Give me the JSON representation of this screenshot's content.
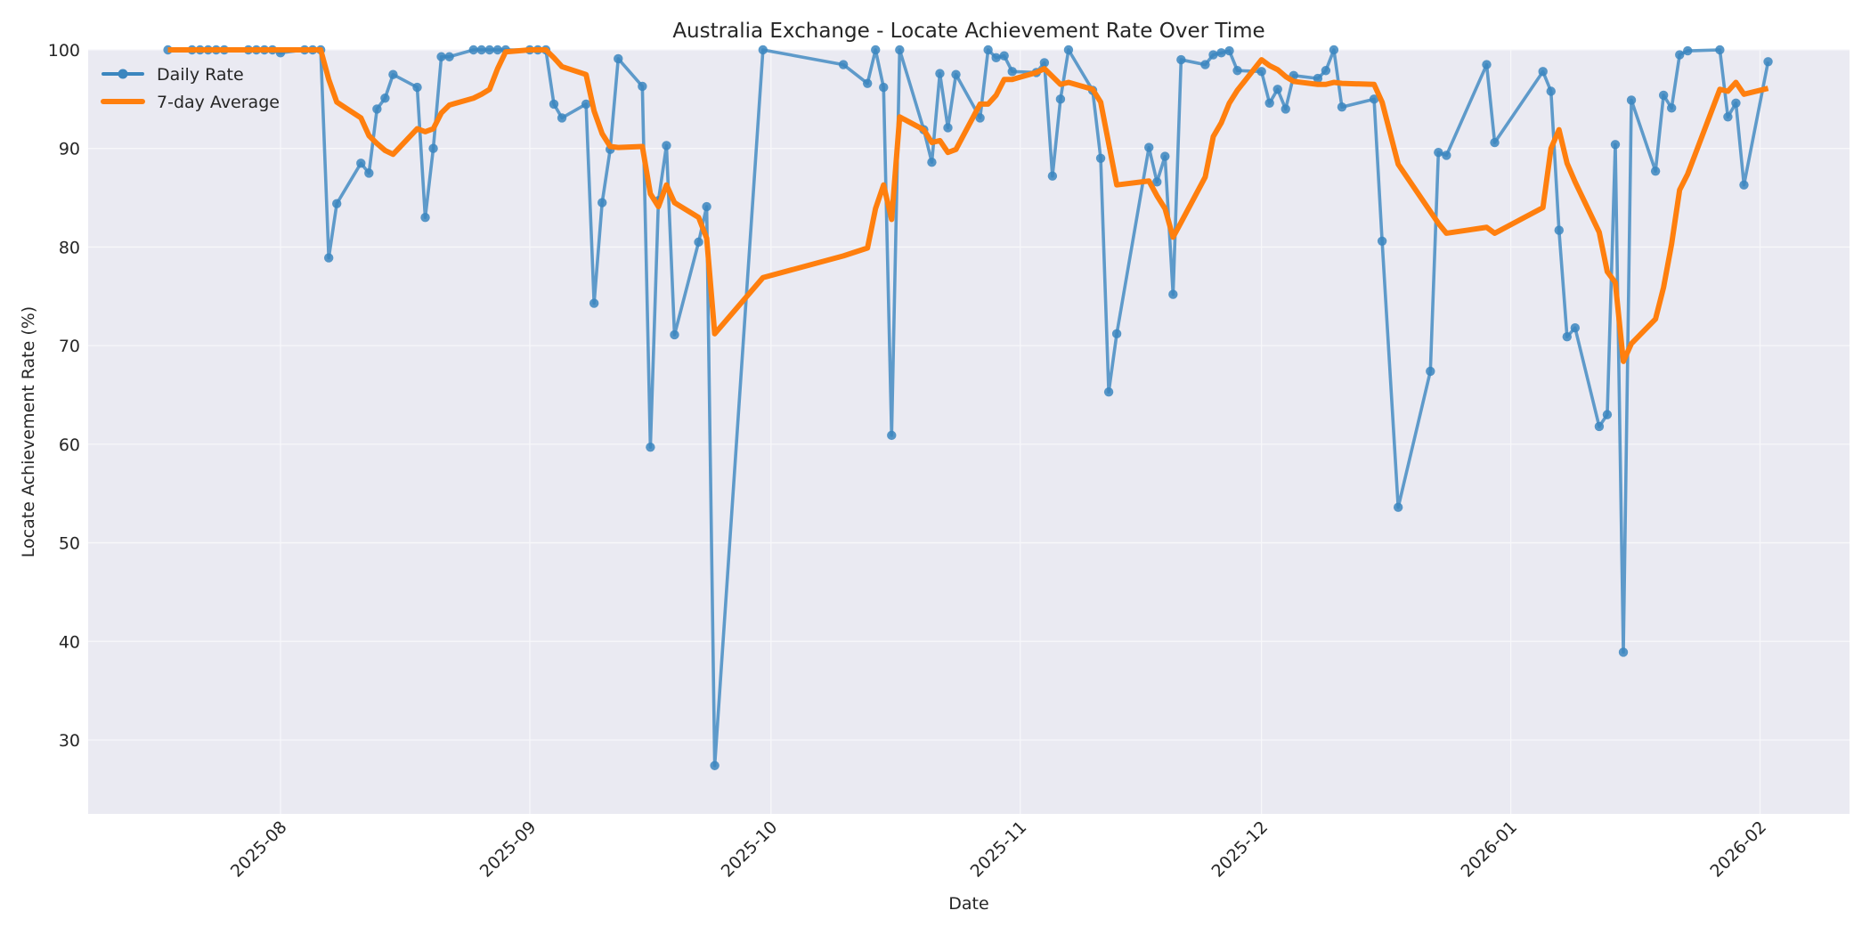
{
  "chart_data": {
    "type": "line",
    "title": "Australia Exchange - Locate Achievement Rate Over Time",
    "xlabel": "Date",
    "ylabel": "Locate Achievement Rate (%)",
    "ylim": [
      22.5,
      100
    ],
    "yticks": [
      30,
      40,
      50,
      60,
      70,
      80,
      90,
      100
    ],
    "xlim": [
      "2025-07-11",
      "2026-02-10"
    ],
    "xticks": [
      "2025-08",
      "2025-09",
      "2025-10",
      "2025-11",
      "2025-12",
      "2026-01",
      "2026-02"
    ],
    "grid": true,
    "legend_position": "upper left",
    "colors": {
      "daily": "#3b86bf",
      "average": "#ff7f0e",
      "plot_bg": "#eaeaf2",
      "grid": "#f7f7fa"
    },
    "series": [
      {
        "name": "Daily Rate",
        "style": "line-with-markers",
        "points": [
          [
            "2025-07-18",
            100
          ],
          [
            "2025-07-21",
            100
          ],
          [
            "2025-07-22",
            100
          ],
          [
            "2025-07-23",
            100
          ],
          [
            "2025-07-24",
            100
          ],
          [
            "2025-07-25",
            100
          ],
          [
            "2025-07-28",
            100
          ],
          [
            "2025-07-29",
            100
          ],
          [
            "2025-07-30",
            100
          ],
          [
            "2025-07-31",
            100
          ],
          [
            "2025-08-01",
            99.7
          ],
          [
            "2025-08-04",
            100
          ],
          [
            "2025-08-05",
            100
          ],
          [
            "2025-08-06",
            100
          ],
          [
            "2025-08-07",
            78.9
          ],
          [
            "2025-08-08",
            84.4
          ],
          [
            "2025-08-11",
            88.5
          ],
          [
            "2025-08-12",
            87.5
          ],
          [
            "2025-08-13",
            94.0
          ],
          [
            "2025-08-14",
            95.1
          ],
          [
            "2025-08-15",
            97.5
          ],
          [
            "2025-08-18",
            96.2
          ],
          [
            "2025-08-19",
            83.0
          ],
          [
            "2025-08-20",
            90.0
          ],
          [
            "2025-08-21",
            99.3
          ],
          [
            "2025-08-22",
            99.3
          ],
          [
            "2025-08-25",
            100
          ],
          [
            "2025-08-26",
            100
          ],
          [
            "2025-08-27",
            100
          ],
          [
            "2025-08-28",
            100
          ],
          [
            "2025-08-29",
            100
          ],
          [
            "2025-09-01",
            100
          ],
          [
            "2025-09-02",
            100
          ],
          [
            "2025-09-03",
            100
          ],
          [
            "2025-09-04",
            94.5
          ],
          [
            "2025-09-05",
            93.1
          ],
          [
            "2025-09-08",
            94.5
          ],
          [
            "2025-09-09",
            74.3
          ],
          [
            "2025-09-10",
            84.5
          ],
          [
            "2025-09-11",
            89.9
          ],
          [
            "2025-09-12",
            99.1
          ],
          [
            "2025-09-15",
            96.3
          ],
          [
            "2025-09-16",
            59.7
          ],
          [
            "2025-09-17",
            84.7
          ],
          [
            "2025-09-18",
            90.3
          ],
          [
            "2025-09-19",
            71.1
          ],
          [
            "2025-09-22",
            80.5
          ],
          [
            "2025-09-23",
            84.1
          ],
          [
            "2025-09-24",
            27.4
          ],
          [
            "2025-09-30",
            100
          ],
          [
            "2025-10-10",
            98.5
          ],
          [
            "2025-10-13",
            96.6
          ],
          [
            "2025-10-14",
            100
          ],
          [
            "2025-10-15",
            96.2
          ],
          [
            "2025-10-16",
            60.9
          ],
          [
            "2025-10-17",
            100
          ],
          [
            "2025-10-20",
            91.9
          ],
          [
            "2025-10-21",
            88.6
          ],
          [
            "2025-10-22",
            97.6
          ],
          [
            "2025-10-23",
            92.1
          ],
          [
            "2025-10-24",
            97.5
          ],
          [
            "2025-10-27",
            93.1
          ],
          [
            "2025-10-28",
            100
          ],
          [
            "2025-10-29",
            99.2
          ],
          [
            "2025-10-30",
            99.4
          ],
          [
            "2025-10-31",
            97.8
          ],
          [
            "2025-11-03",
            97.7
          ],
          [
            "2025-11-04",
            98.7
          ],
          [
            "2025-11-05",
            87.2
          ],
          [
            "2025-11-06",
            95.0
          ],
          [
            "2025-11-07",
            100
          ],
          [
            "2025-11-10",
            95.9
          ],
          [
            "2025-11-11",
            89.0
          ],
          [
            "2025-11-12",
            65.3
          ],
          [
            "2025-11-13",
            71.2
          ],
          [
            "2025-11-17",
            90.1
          ],
          [
            "2025-11-18",
            86.6
          ],
          [
            "2025-11-19",
            89.2
          ],
          [
            "2025-11-20",
            75.2
          ],
          [
            "2025-11-21",
            99.0
          ],
          [
            "2025-11-24",
            98.5
          ],
          [
            "2025-11-25",
            99.5
          ],
          [
            "2025-11-26",
            99.7
          ],
          [
            "2025-11-27",
            99.9
          ],
          [
            "2025-11-28",
            97.9
          ],
          [
            "2025-12-01",
            97.8
          ],
          [
            "2025-12-02",
            94.6
          ],
          [
            "2025-12-03",
            96.0
          ],
          [
            "2025-12-04",
            94.0
          ],
          [
            "2025-12-05",
            97.4
          ],
          [
            "2025-12-08",
            97.1
          ],
          [
            "2025-12-09",
            97.9
          ],
          [
            "2025-12-10",
            100
          ],
          [
            "2025-12-11",
            94.2
          ],
          [
            "2025-12-15",
            95.0
          ],
          [
            "2025-12-16",
            80.6
          ],
          [
            "2025-12-18",
            53.6
          ],
          [
            "2025-12-22",
            67.4
          ],
          [
            "2025-12-23",
            89.6
          ],
          [
            "2025-12-24",
            89.3
          ],
          [
            "2025-12-29",
            98.5
          ],
          [
            "2025-12-30",
            90.6
          ],
          [
            "2026-01-05",
            97.8
          ],
          [
            "2026-01-06",
            95.8
          ],
          [
            "2026-01-07",
            81.7
          ],
          [
            "2026-01-08",
            70.9
          ],
          [
            "2026-01-09",
            71.8
          ],
          [
            "2026-01-12",
            61.8
          ],
          [
            "2026-01-13",
            63.0
          ],
          [
            "2026-01-14",
            90.4
          ],
          [
            "2026-01-15",
            38.9
          ],
          [
            "2026-01-16",
            94.9
          ],
          [
            "2026-01-19",
            87.7
          ],
          [
            "2026-01-20",
            95.4
          ],
          [
            "2026-01-21",
            94.1
          ],
          [
            "2026-01-22",
            99.5
          ],
          [
            "2026-01-23",
            99.9
          ],
          [
            "2026-01-27",
            100
          ],
          [
            "2026-01-28",
            93.2
          ],
          [
            "2026-01-29",
            94.6
          ],
          [
            "2026-01-30",
            86.3
          ],
          [
            "2026-02-02",
            98.8
          ]
        ]
      },
      {
        "name": "7-day Average",
        "style": "line",
        "points": [
          [
            "2025-07-18",
            100
          ],
          [
            "2025-08-06",
            100
          ],
          [
            "2025-08-07",
            97.0
          ],
          [
            "2025-08-08",
            94.7
          ],
          [
            "2025-08-11",
            93.1
          ],
          [
            "2025-08-12",
            91.3
          ],
          [
            "2025-08-13",
            90.5
          ],
          [
            "2025-08-14",
            89.8
          ],
          [
            "2025-08-15",
            89.4
          ],
          [
            "2025-08-18",
            92.0
          ],
          [
            "2025-08-19",
            91.7
          ],
          [
            "2025-08-20",
            92.0
          ],
          [
            "2025-08-21",
            93.6
          ],
          [
            "2025-08-22",
            94.4
          ],
          [
            "2025-08-25",
            95.1
          ],
          [
            "2025-08-26",
            95.5
          ],
          [
            "2025-08-27",
            96.0
          ],
          [
            "2025-08-28",
            98.1
          ],
          [
            "2025-08-29",
            99.8
          ],
          [
            "2025-09-01",
            100
          ],
          [
            "2025-09-03",
            100
          ],
          [
            "2025-09-04",
            99.2
          ],
          [
            "2025-09-05",
            98.3
          ],
          [
            "2025-09-08",
            97.5
          ],
          [
            "2025-09-09",
            93.8
          ],
          [
            "2025-09-10",
            91.5
          ],
          [
            "2025-09-11",
            90.2
          ],
          [
            "2025-09-12",
            90.1
          ],
          [
            "2025-09-15",
            90.2
          ],
          [
            "2025-09-16",
            85.4
          ],
          [
            "2025-09-17",
            84.1
          ],
          [
            "2025-09-18",
            86.3
          ],
          [
            "2025-09-19",
            84.5
          ],
          [
            "2025-09-22",
            83.0
          ],
          [
            "2025-09-23",
            80.9
          ],
          [
            "2025-09-24",
            71.2
          ],
          [
            "2025-09-30",
            76.9
          ],
          [
            "2025-10-10",
            79.1
          ],
          [
            "2025-10-13",
            79.9
          ],
          [
            "2025-10-14",
            83.9
          ],
          [
            "2025-10-15",
            86.3
          ],
          [
            "2025-10-16",
            82.8
          ],
          [
            "2025-10-17",
            93.2
          ],
          [
            "2025-10-20",
            91.9
          ],
          [
            "2025-10-21",
            90.6
          ],
          [
            "2025-10-22",
            90.8
          ],
          [
            "2025-10-23",
            89.6
          ],
          [
            "2025-10-24",
            89.9
          ],
          [
            "2025-10-27",
            94.5
          ],
          [
            "2025-10-28",
            94.5
          ],
          [
            "2025-10-29",
            95.4
          ],
          [
            "2025-10-30",
            97.0
          ],
          [
            "2025-10-31",
            97.0
          ],
          [
            "2025-11-03",
            97.7
          ],
          [
            "2025-11-04",
            98.1
          ],
          [
            "2025-11-05",
            97.3
          ],
          [
            "2025-11-06",
            96.5
          ],
          [
            "2025-11-07",
            96.7
          ],
          [
            "2025-11-10",
            96.0
          ],
          [
            "2025-11-11",
            94.7
          ],
          [
            "2025-11-12",
            90.5
          ],
          [
            "2025-11-13",
            86.3
          ],
          [
            "2025-11-17",
            86.7
          ],
          [
            "2025-11-18",
            85.2
          ],
          [
            "2025-11-19",
            83.9
          ],
          [
            "2025-11-20",
            81.0
          ],
          [
            "2025-11-21",
            82.5
          ],
          [
            "2025-11-24",
            87.1
          ],
          [
            "2025-11-25",
            91.2
          ],
          [
            "2025-11-26",
            92.6
          ],
          [
            "2025-11-27",
            94.6
          ],
          [
            "2025-11-28",
            95.9
          ],
          [
            "2025-12-01",
            99.0
          ],
          [
            "2025-12-02",
            98.4
          ],
          [
            "2025-12-03",
            98.0
          ],
          [
            "2025-12-04",
            97.3
          ],
          [
            "2025-12-05",
            96.8
          ],
          [
            "2025-12-08",
            96.5
          ],
          [
            "2025-12-09",
            96.5
          ],
          [
            "2025-12-10",
            96.7
          ],
          [
            "2025-12-11",
            96.6
          ],
          [
            "2025-12-15",
            96.5
          ],
          [
            "2025-12-16",
            94.7
          ],
          [
            "2025-12-18",
            88.4
          ],
          [
            "2025-12-22",
            83.6
          ],
          [
            "2025-12-23",
            82.4
          ],
          [
            "2025-12-24",
            81.4
          ],
          [
            "2025-12-29",
            82.0
          ],
          [
            "2025-12-30",
            81.4
          ],
          [
            "2026-01-05",
            84.0
          ],
          [
            "2026-01-06",
            90.0
          ],
          [
            "2026-01-07",
            91.9
          ],
          [
            "2026-01-08",
            88.5
          ],
          [
            "2026-01-09",
            86.6
          ],
          [
            "2026-01-12",
            81.5
          ],
          [
            "2026-01-13",
            77.5
          ],
          [
            "2026-01-14",
            76.4
          ],
          [
            "2026-01-15",
            68.4
          ],
          [
            "2026-01-16",
            70.2
          ],
          [
            "2026-01-19",
            72.7
          ],
          [
            "2026-01-20",
            75.9
          ],
          [
            "2026-01-21",
            80.3
          ],
          [
            "2026-01-22",
            85.8
          ],
          [
            "2026-01-23",
            87.4
          ],
          [
            "2026-01-27",
            96.0
          ],
          [
            "2026-01-28",
            95.8
          ],
          [
            "2026-01-29",
            96.7
          ],
          [
            "2026-01-30",
            95.5
          ],
          [
            "2026-02-02",
            96.1
          ]
        ]
      }
    ]
  }
}
